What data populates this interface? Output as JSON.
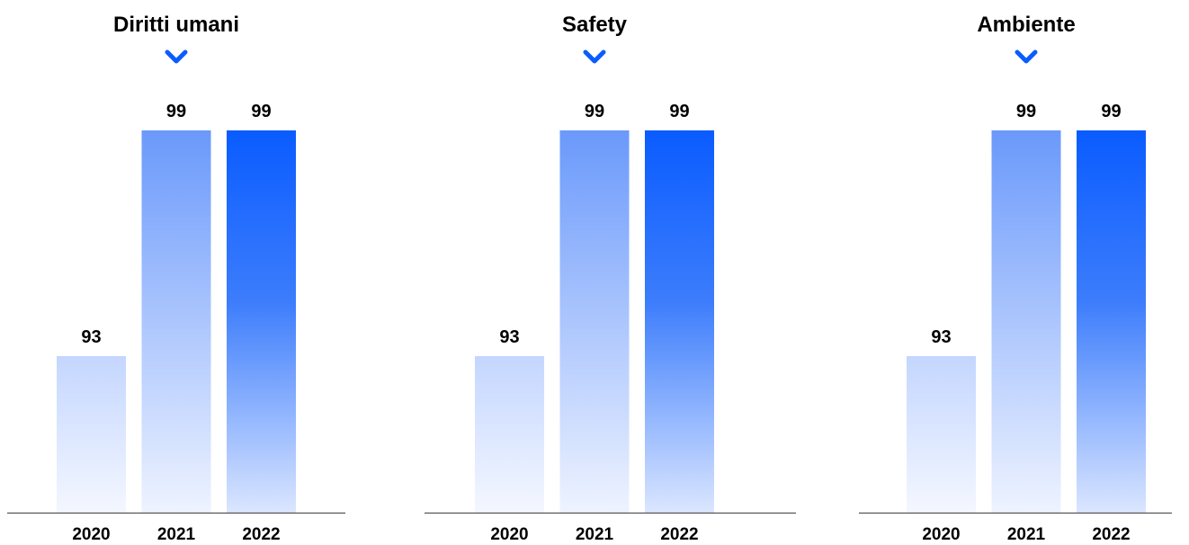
{
  "chart_data": [
    {
      "type": "bar",
      "title": "Diritti umani",
      "categories": [
        "2020",
        "2021",
        "2022"
      ],
      "values": [
        93,
        99,
        99
      ],
      "icon": "chevron-down-icon"
    },
    {
      "type": "bar",
      "title": "Safety",
      "categories": [
        "2020",
        "2021",
        "2022"
      ],
      "values": [
        93,
        99,
        99
      ],
      "icon": "chevron-down-icon"
    },
    {
      "type": "bar",
      "title": "Ambiente",
      "categories": [
        "2020",
        "2021",
        "2022"
      ],
      "values": [
        93,
        99,
        99
      ],
      "icon": "chevron-down-icon"
    }
  ],
  "colors": {
    "accent": "#0a5cff",
    "bar_light": "#c4d6ff",
    "bar_mid": "#6e9dfc",
    "baseline": "#555555"
  }
}
